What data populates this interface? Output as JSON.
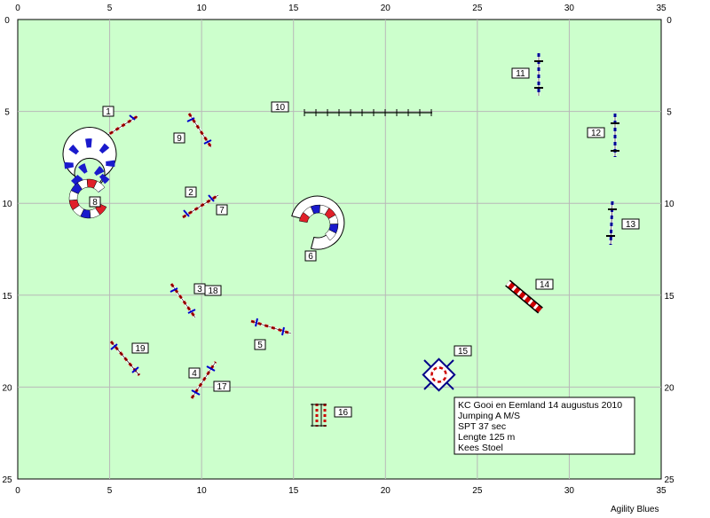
{
  "course": {
    "area_width_m": 35,
    "area_height_m": 25,
    "background_color": "#ccffcc",
    "grid_color": "#b8b8b8",
    "x_ticks": [
      0,
      5,
      10,
      15,
      20,
      25,
      30,
      35
    ],
    "y_ticks": [
      0,
      5,
      10,
      15,
      20,
      25
    ]
  },
  "obstacle_numbers": [
    "1",
    "2",
    "3",
    "4",
    "5",
    "6",
    "7",
    "8",
    "9",
    "10",
    "11",
    "12",
    "13",
    "14",
    "15",
    "16",
    "17",
    "18",
    "19"
  ],
  "info_box": {
    "lines": [
      "KC Gooi en Eemland 14 augustus 2010",
      "Jumping A  M/S",
      "SPT 37 sec",
      "Lengte 125 m",
      "Kees Stoel"
    ]
  },
  "footer": "Agility Blues",
  "colors": {
    "pole_blue": "#0000cc",
    "pole_red": "#cc0000",
    "tunnel_red": "#e0202a",
    "tunnel_blue": "#1a1acc"
  }
}
